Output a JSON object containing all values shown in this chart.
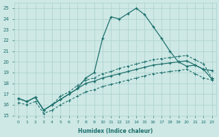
{
  "xlabel": "Humidex (Indice chaleur)",
  "bg_color": "#cde8e5",
  "grid_color": "#aacfcc",
  "line_color": "#1a6e6a",
  "xlim": [
    -0.5,
    23.5
  ],
  "ylim": [
    15,
    25.5
  ],
  "xticks": [
    0,
    1,
    2,
    3,
    4,
    5,
    6,
    7,
    8,
    9,
    10,
    11,
    12,
    13,
    14,
    15,
    16,
    17,
    18,
    19,
    20,
    21,
    22,
    23
  ],
  "yticks": [
    15,
    16,
    17,
    18,
    19,
    20,
    21,
    22,
    23,
    24,
    25
  ],
  "lineA_x": [
    0,
    1,
    2,
    3,
    4,
    5,
    6,
    7,
    8,
    9,
    10,
    11,
    12,
    13,
    14,
    15,
    16,
    17,
    18,
    19,
    20,
    21,
    22,
    23
  ],
  "lineA_y": [
    16.6,
    16.3,
    16.7,
    15.5,
    16.0,
    16.5,
    17.0,
    17.5,
    18.5,
    19.0,
    22.2,
    24.2,
    24.0,
    24.5,
    25.0,
    24.4,
    23.3,
    22.2,
    21.0,
    20.0,
    19.6,
    19.7,
    19.3,
    19.2
  ],
  "lineB_x": [
    0,
    1,
    2,
    3,
    4,
    5,
    6,
    7,
    8,
    9,
    10,
    11,
    12,
    13,
    14,
    15,
    16,
    17,
    18,
    19,
    20,
    21,
    22,
    23
  ],
  "lineB_y": [
    16.6,
    16.3,
    16.7,
    15.5,
    16.0,
    16.5,
    17.0,
    17.5,
    18.0,
    18.2,
    18.5,
    18.7,
    18.9,
    19.1,
    19.3,
    19.5,
    19.7,
    19.8,
    19.9,
    20.0,
    20.1,
    19.7,
    19.3,
    18.4
  ],
  "lineC_x": [
    0,
    1,
    2,
    3,
    4,
    5,
    6,
    7,
    8,
    9,
    10,
    11,
    12,
    13,
    14,
    15,
    16,
    17,
    18,
    19,
    20,
    21,
    22,
    23
  ],
  "lineC_y": [
    16.2,
    16.0,
    16.3,
    15.2,
    15.5,
    16.0,
    16.4,
    16.8,
    17.2,
    17.4,
    17.7,
    17.9,
    18.1,
    18.3,
    18.5,
    18.7,
    18.9,
    19.0,
    19.1,
    19.2,
    19.3,
    18.9,
    18.5,
    18.3
  ],
  "lineD_x": [
    0,
    1,
    2,
    3,
    4,
    5,
    6,
    7,
    8,
    9,
    10,
    11,
    12,
    13,
    14,
    15,
    16,
    17,
    18,
    19,
    20,
    21,
    22,
    23
  ],
  "lineD_y": [
    16.6,
    16.3,
    16.7,
    15.5,
    16.0,
    16.8,
    17.2,
    17.8,
    18.3,
    18.5,
    18.9,
    19.1,
    19.4,
    19.6,
    19.8,
    20.0,
    20.2,
    20.3,
    20.4,
    20.5,
    20.6,
    20.2,
    19.8,
    18.5
  ]
}
